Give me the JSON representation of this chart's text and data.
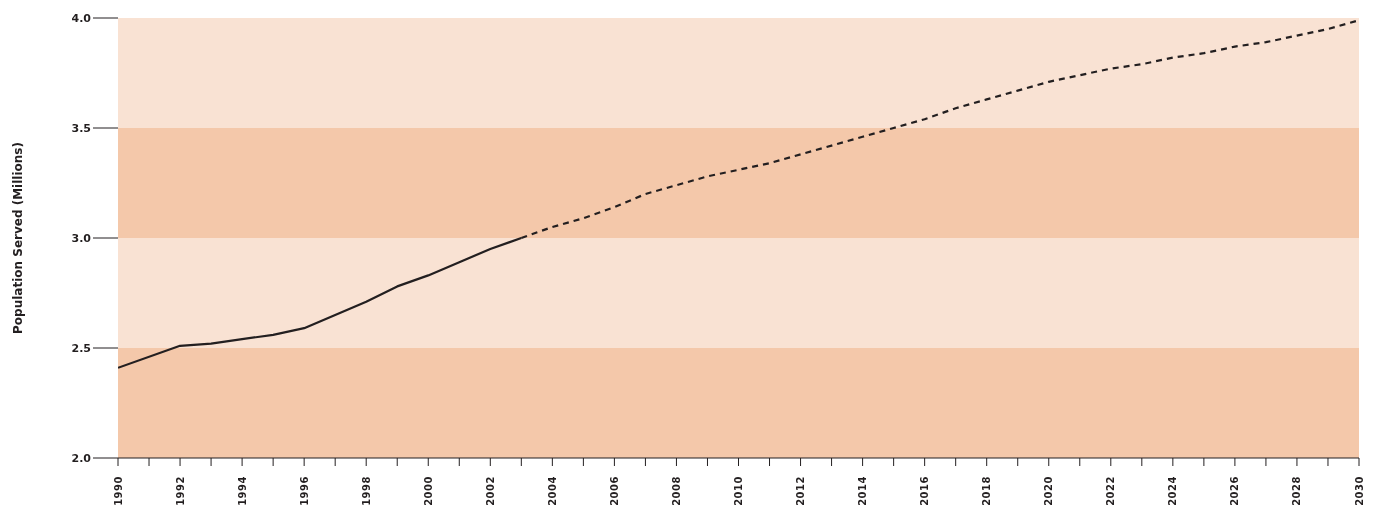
{
  "chart_data": {
    "type": "line",
    "ylabel": "Population Served (Millions)",
    "series": [
      {
        "color": "#231f20",
        "line_style": "solid",
        "x": [
          1990,
          1992,
          1993,
          1994,
          1995,
          1996,
          1997,
          1998,
          1999,
          2000,
          2001,
          2002,
          2003
        ],
        "values": [
          2.41,
          2.51,
          2.52,
          2.54,
          2.56,
          2.59,
          2.65,
          2.71,
          2.78,
          2.83,
          2.89,
          2.95,
          3.0
        ]
      },
      {
        "color": "#231f20",
        "line_style": "dashed",
        "x": [
          2003,
          2004,
          2005,
          2006,
          2007,
          2008,
          2009,
          2010,
          2011,
          2012,
          2013,
          2014,
          2015,
          2016,
          2017,
          2018,
          2019,
          2020,
          2021,
          2022,
          2023,
          2024,
          2025,
          2026,
          2027,
          2028,
          2029,
          2030
        ],
        "values": [
          3.0,
          3.05,
          3.09,
          3.14,
          3.2,
          3.24,
          3.28,
          3.31,
          3.34,
          3.38,
          3.42,
          3.46,
          3.5,
          3.54,
          3.59,
          3.63,
          3.67,
          3.71,
          3.74,
          3.77,
          3.79,
          3.82,
          3.84,
          3.87,
          3.89,
          3.92,
          3.95,
          3.99
        ]
      }
    ],
    "xlim": [
      1990,
      2030
    ],
    "xticks": [
      1990,
      {
        "value": 1991,
        "label": null
      },
      1992,
      {
        "value": 1993,
        "label": null
      },
      1994,
      {
        "value": 1995,
        "label": null
      },
      1996,
      {
        "value": 1997,
        "label": null
      },
      1998,
      {
        "value": 1999,
        "label": null
      },
      2000,
      {
        "value": 2001,
        "label": null
      },
      2002,
      {
        "value": 2003,
        "label": null
      },
      2004,
      {
        "value": 2005,
        "label": null
      },
      2006,
      {
        "value": 2007,
        "label": null
      },
      2008,
      {
        "value": 2009,
        "label": null
      },
      2010,
      {
        "value": 2011,
        "label": null
      },
      2012,
      {
        "value": 2013,
        "label": null
      },
      2014,
      {
        "value": 2015,
        "label": null
      },
      2016,
      {
        "value": 2017,
        "label": null
      },
      2018,
      {
        "value": 2019,
        "label": null
      },
      2020,
      {
        "value": 2021,
        "label": null
      },
      2022,
      {
        "value": 2023,
        "label": null
      },
      2024,
      {
        "value": 2025,
        "label": null
      },
      2026,
      {
        "value": 2027,
        "label": null
      },
      2028,
      {
        "value": 2029,
        "label": null
      },
      2030
    ],
    "ylim": [
      2.0,
      4.0
    ],
    "yticks": [
      {
        "value": 2,
        "label": "2.0"
      },
      {
        "value": 2.5,
        "label": "2.5"
      },
      {
        "value": 3,
        "label": "3.0"
      },
      {
        "value": 3.5,
        "label": "3.5"
      },
      {
        "value": 4,
        "label": "4.0"
      }
    ],
    "bands": [
      {
        "axis": "y",
        "from": 2.0,
        "to": 2.5,
        "color": "#f4c8aa"
      },
      {
        "axis": "y",
        "from": 2.5,
        "to": 3.0,
        "color": "#f9e2d3"
      },
      {
        "axis": "y",
        "from": 3.0,
        "to": 3.5,
        "color": "#f4c8aa"
      },
      {
        "axis": "y",
        "from": 3.5,
        "to": 4.0,
        "color": "#f9e2d3"
      }
    ],
    "grid": false,
    "legend": false,
    "marker": "none"
  }
}
